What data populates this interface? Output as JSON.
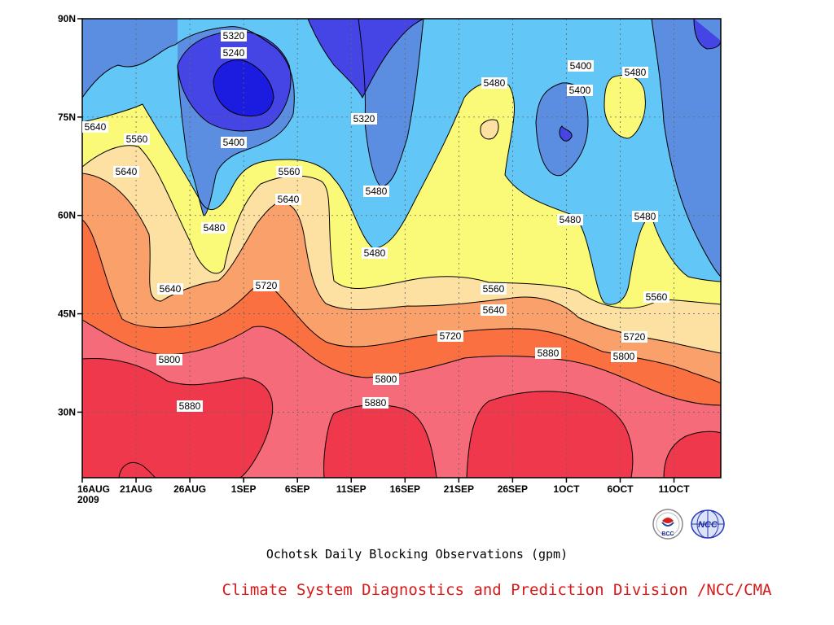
{
  "chart_data": {
    "type": "heatmap",
    "subtype": "filled-contour",
    "title": "Ochotsk Daily Blocking Observations (gpm)",
    "x_ticks": [
      "16AUG\n2009",
      "21AUG",
      "26AUG",
      "1SEP",
      "6SEP",
      "11SEP",
      "16SEP",
      "21SEP",
      "26SEP",
      "1OCT",
      "6OCT",
      "11OCT"
    ],
    "y_ticks": [
      "30N",
      "45N",
      "60N",
      "75N",
      "90N"
    ],
    "y_range": [
      20,
      90
    ],
    "contour_levels": [
      5240,
      5320,
      5400,
      5480,
      5560,
      5640,
      5720,
      5800,
      5880
    ],
    "contour_labels": [
      {
        "value": "5320"
      },
      {
        "value": "5240"
      },
      {
        "value": "5320"
      },
      {
        "value": "5400"
      },
      {
        "value": "5400"
      },
      {
        "value": "5400"
      },
      {
        "value": "5480"
      },
      {
        "value": "5480"
      },
      {
        "value": "5480"
      },
      {
        "value": "5480"
      },
      {
        "value": "5480"
      },
      {
        "value": "5480"
      },
      {
        "value": "5480"
      },
      {
        "value": "5560"
      },
      {
        "value": "5560"
      },
      {
        "value": "5560"
      },
      {
        "value": "5560"
      },
      {
        "value": "5640"
      },
      {
        "value": "5640"
      },
      {
        "value": "5640"
      },
      {
        "value": "5640"
      },
      {
        "value": "5640"
      },
      {
        "value": "5720"
      },
      {
        "value": "5720"
      },
      {
        "value": "5720"
      },
      {
        "value": "5800"
      },
      {
        "value": "5800"
      },
      {
        "value": "5800"
      },
      {
        "value": "5880"
      },
      {
        "value": "5880"
      },
      {
        "value": "5880"
      }
    ],
    "colors": [
      "#1c1ce0",
      "#4545e6",
      "#5b8ee0",
      "#62c7f7",
      "#fafa78",
      "#fce1a2",
      "#faa06a",
      "#fa7040",
      "#f56b79",
      "#f0384c"
    ],
    "grid": true
  },
  "caption": "Ochotsk Daily Blocking Observations (gpm)",
  "credit": "Climate System Diagnostics and Prediction Division /NCC/CMA",
  "logos": [
    {
      "icon": "bcc-logo-icon",
      "text": "BCC"
    },
    {
      "icon": "ncc-logo-icon",
      "text": "NCC"
    }
  ]
}
